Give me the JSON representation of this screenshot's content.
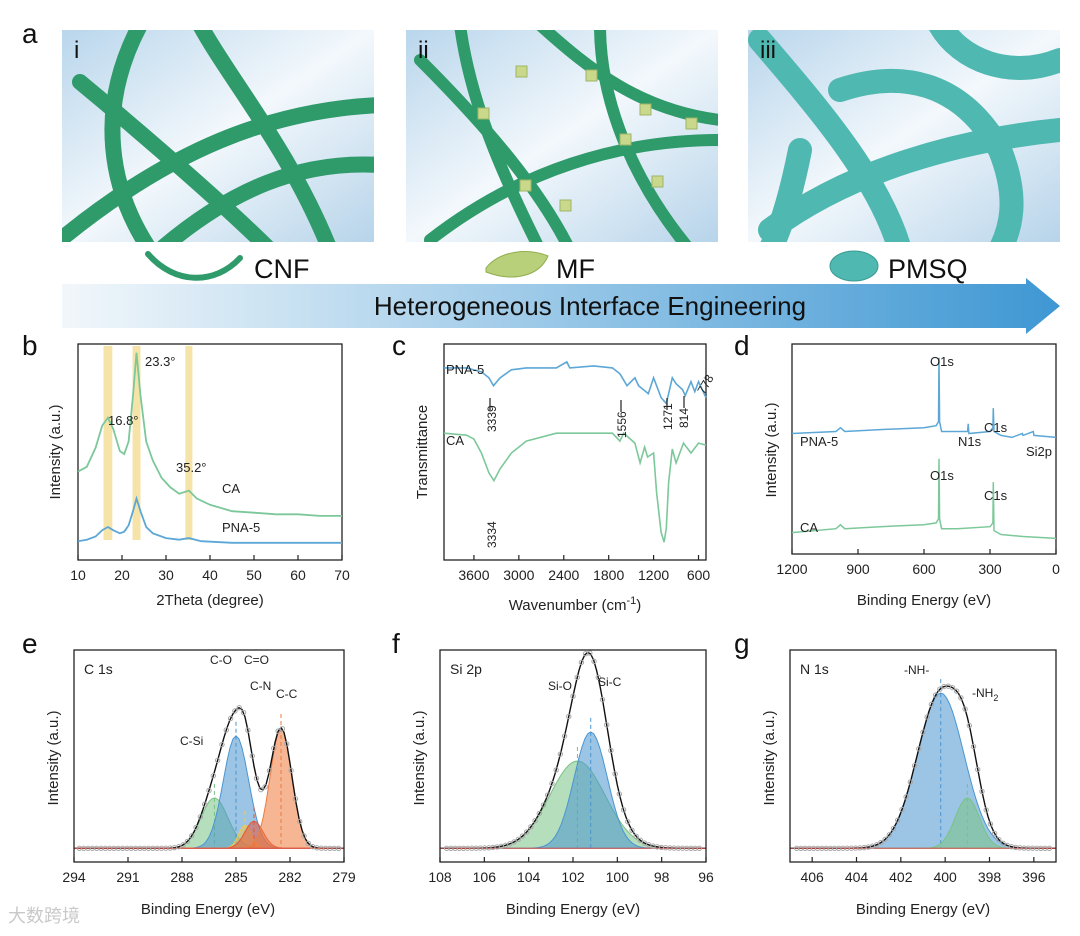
{
  "panels": {
    "a": {
      "letter": "a",
      "subpanels": [
        {
          "roman": "i",
          "material": "CNF"
        },
        {
          "roman": "ii",
          "material": "MF"
        },
        {
          "roman": "iii",
          "material": "PMSQ"
        }
      ],
      "arrow_label": "Heterogeneous Interface Engineering"
    },
    "b": {
      "letter": "b"
    },
    "c": {
      "letter": "c"
    },
    "d": {
      "letter": "d"
    },
    "e": {
      "letter": "e"
    },
    "f": {
      "letter": "f"
    },
    "g": {
      "letter": "g"
    }
  },
  "colors": {
    "green_curve": "#7cc89a",
    "blue_curve": "#5ca7d6",
    "highlight": "#f2d98a",
    "fiber": "#2f9a6a",
    "sky": "#cfe4f3",
    "arrow": "#4a9fd6",
    "cs_red": "#e5533a",
    "cs_blue": "#4a95d0",
    "cs_green": "#79c285",
    "cs_yellow": "#f2c94c",
    "cs_orange": "#ef7a3c",
    "data_gray": "#a8a8a8"
  },
  "watermark": "大数跨境",
  "chart_data": [
    {
      "id": "b",
      "type": "line",
      "xlabel": "2Theta (degree)",
      "ylabel": "Intensity (a.u.)",
      "xlim": [
        10,
        70
      ],
      "xticks": [
        10,
        20,
        30,
        40,
        50,
        60,
        70
      ],
      "highlight_bands": [
        [
          15.8,
          17.8
        ],
        [
          22.4,
          24.2
        ],
        [
          34.4,
          36.0
        ]
      ],
      "annotations": [
        "16.8°",
        "23.3°",
        "35.2°"
      ],
      "series": [
        {
          "name": "CA",
          "color": "#7cc89a",
          "points": [
            [
              10,
              0.47
            ],
            [
              12,
              0.5
            ],
            [
              14,
              0.62
            ],
            [
              15.5,
              0.76
            ],
            [
              16.8,
              0.81
            ],
            [
              18,
              0.74
            ],
            [
              19.5,
              0.6
            ],
            [
              20.5,
              0.58
            ],
            [
              21.5,
              0.66
            ],
            [
              22.5,
              0.95
            ],
            [
              23.3,
              1.22
            ],
            [
              24.2,
              0.95
            ],
            [
              25.5,
              0.66
            ],
            [
              27,
              0.54
            ],
            [
              29,
              0.43
            ],
            [
              31,
              0.37
            ],
            [
              33,
              0.33
            ],
            [
              35.2,
              0.35
            ],
            [
              37,
              0.3
            ],
            [
              40,
              0.26
            ],
            [
              45,
              0.22
            ],
            [
              50,
              0.21
            ],
            [
              55,
              0.2
            ],
            [
              60,
              0.2
            ],
            [
              65,
              0.19
            ],
            [
              70,
              0.19
            ]
          ]
        },
        {
          "name": "PNA-5",
          "color": "#5ca7d6",
          "points": [
            [
              10,
              0.03
            ],
            [
              12,
              0.04
            ],
            [
              14,
              0.06
            ],
            [
              15.5,
              0.1
            ],
            [
              16.8,
              0.12
            ],
            [
              18,
              0.1
            ],
            [
              19.5,
              0.08
            ],
            [
              20.5,
              0.09
            ],
            [
              21.5,
              0.13
            ],
            [
              22.5,
              0.22
            ],
            [
              23.3,
              0.3
            ],
            [
              24.2,
              0.22
            ],
            [
              25.5,
              0.12
            ],
            [
              27,
              0.08
            ],
            [
              30,
              0.05
            ],
            [
              33,
              0.04
            ],
            [
              35.2,
              0.05
            ],
            [
              38,
              0.03
            ],
            [
              45,
              0.02
            ],
            [
              55,
              0.02
            ],
            [
              70,
              0.02
            ]
          ]
        }
      ]
    },
    {
      "id": "c",
      "type": "line",
      "xlabel": "Wavenumber (cm",
      "xlabel_sup": "-1",
      "xlabel_tail": ")",
      "ylabel": "Transmittance",
      "xlim": [
        4000,
        500
      ],
      "xticks": [
        3600,
        3000,
        2400,
        1800,
        1200,
        600
      ],
      "annotations": [
        "3339",
        "1556",
        "1271",
        "814",
        "778",
        "3334"
      ],
      "series": [
        {
          "name": "PNA-5",
          "color": "#5ca7d6",
          "points": [
            [
              4000,
              0.93
            ],
            [
              3700,
              0.93
            ],
            [
              3500,
              0.91
            ],
            [
              3400,
              0.88
            ],
            [
              3339,
              0.84
            ],
            [
              3250,
              0.88
            ],
            [
              3100,
              0.92
            ],
            [
              2900,
              0.93
            ],
            [
              2500,
              0.93
            ],
            [
              2360,
              0.96
            ],
            [
              2320,
              0.93
            ],
            [
              2000,
              0.94
            ],
            [
              1750,
              0.93
            ],
            [
              1650,
              0.9
            ],
            [
              1556,
              0.84
            ],
            [
              1450,
              0.88
            ],
            [
              1400,
              0.84
            ],
            [
              1271,
              0.8
            ],
            [
              1200,
              0.88
            ],
            [
              1100,
              0.78
            ],
            [
              1030,
              0.75
            ],
            [
              950,
              0.88
            ],
            [
              900,
              0.85
            ],
            [
              814,
              0.82
            ],
            [
              778,
              0.79
            ],
            [
              700,
              0.86
            ],
            [
              650,
              0.81
            ],
            [
              600,
              0.86
            ],
            [
              500,
              0.78
            ]
          ]
        },
        {
          "name": "CA",
          "color": "#7cc89a",
          "points": [
            [
              4000,
              0.6
            ],
            [
              3700,
              0.59
            ],
            [
              3600,
              0.57
            ],
            [
              3500,
              0.5
            ],
            [
              3400,
              0.4
            ],
            [
              3334,
              0.36
            ],
            [
              3250,
              0.42
            ],
            [
              3100,
              0.5
            ],
            [
              2900,
              0.56
            ],
            [
              2500,
              0.6
            ],
            [
              2000,
              0.6
            ],
            [
              1750,
              0.6
            ],
            [
              1650,
              0.56
            ],
            [
              1600,
              0.6
            ],
            [
              1450,
              0.55
            ],
            [
              1380,
              0.45
            ],
            [
              1320,
              0.53
            ],
            [
              1280,
              0.48
            ],
            [
              1200,
              0.5
            ],
            [
              1160,
              0.3
            ],
            [
              1100,
              0.1
            ],
            [
              1060,
              0.05
            ],
            [
              1030,
              0.12
            ],
            [
              1000,
              0.35
            ],
            [
              950,
              0.52
            ],
            [
              900,
              0.45
            ],
            [
              800,
              0.55
            ],
            [
              700,
              0.5
            ],
            [
              600,
              0.55
            ],
            [
              500,
              0.54
            ]
          ]
        }
      ]
    },
    {
      "id": "d",
      "type": "line",
      "xlabel": "Binding Energy (eV)",
      "ylabel": "Intensity (a.u.)",
      "xlim": [
        1200,
        0
      ],
      "xticks": [
        1200,
        900,
        600,
        300,
        0
      ],
      "annotations": [
        "O1s",
        "N1s",
        "C1s",
        "Si2p",
        "O1s",
        "C1s"
      ],
      "series": [
        {
          "name": "PNA-5",
          "color": "#5ca7d6",
          "points": [
            [
              1200,
              0.61
            ],
            [
              1000,
              0.62
            ],
            [
              980,
              0.64
            ],
            [
              960,
              0.62
            ],
            [
              800,
              0.63
            ],
            [
              600,
              0.64
            ],
            [
              545,
              0.65
            ],
            [
              534,
              0.67
            ],
            [
              532,
              1.0
            ],
            [
              529,
              0.67
            ],
            [
              520,
              0.62
            ],
            [
              450,
              0.62
            ],
            [
              402,
              0.62
            ],
            [
              399,
              0.66
            ],
            [
              396,
              0.61
            ],
            [
              300,
              0.62
            ],
            [
              287,
              0.64
            ],
            [
              285,
              0.74
            ],
            [
              282,
              0.62
            ],
            [
              250,
              0.6
            ],
            [
              200,
              0.59
            ],
            [
              153,
              0.61
            ],
            [
              150,
              0.6
            ],
            [
              103,
              0.62
            ],
            [
              100,
              0.6
            ],
            [
              0,
              0.59
            ]
          ]
        },
        {
          "name": "CA",
          "color": "#7cc89a",
          "points": [
            [
              1200,
              0.1
            ],
            [
              1000,
              0.12
            ],
            [
              980,
              0.14
            ],
            [
              960,
              0.12
            ],
            [
              800,
              0.13
            ],
            [
              600,
              0.14
            ],
            [
              545,
              0.15
            ],
            [
              534,
              0.17
            ],
            [
              532,
              0.48
            ],
            [
              529,
              0.17
            ],
            [
              520,
              0.12
            ],
            [
              450,
              0.12
            ],
            [
              300,
              0.13
            ],
            [
              287,
              0.15
            ],
            [
              285,
              0.36
            ],
            [
              282,
              0.11
            ],
            [
              250,
              0.09
            ],
            [
              150,
              0.08
            ],
            [
              0,
              0.07
            ]
          ]
        }
      ]
    },
    {
      "id": "e",
      "type": "area",
      "title": "C 1s",
      "xlabel": "Binding Energy (eV)",
      "ylabel": "Intensity (a.u.)",
      "xlim": [
        294,
        279
      ],
      "xticks": [
        294,
        291,
        288,
        285,
        282,
        279
      ],
      "peaks": [
        {
          "name": "C-Si",
          "center": 286.2,
          "height": 0.26,
          "width": 0.75,
          "color": "#79c285"
        },
        {
          "name": "C-O",
          "center": 285.0,
          "height": 0.58,
          "width": 0.7,
          "color": "#4a95d0"
        },
        {
          "name": "C=O",
          "center": 284.5,
          "height": 0.12,
          "width": 0.35,
          "color": "#f2c94c"
        },
        {
          "name": "C-N",
          "center": 284.0,
          "height": 0.14,
          "width": 0.5,
          "color": "#e5533a"
        },
        {
          "name": "C-C",
          "center": 282.5,
          "height": 0.62,
          "width": 0.6,
          "color": "#ef7a3c"
        }
      ],
      "baseline": 0.05,
      "sample_range": [
        293.7,
        279.3
      ]
    },
    {
      "id": "f",
      "type": "area",
      "title": "Si 2p",
      "xlabel": "Binding Energy (eV)",
      "ylabel": "Intensity (a.u.)",
      "xlim": [
        108,
        96
      ],
      "xticks": [
        108,
        106,
        104,
        102,
        100,
        98,
        96
      ],
      "peaks": [
        {
          "name": "Si-O",
          "center": 101.8,
          "height": 0.45,
          "width": 1.25,
          "color": "#79c285"
        },
        {
          "name": "Si-C",
          "center": 101.2,
          "height": 0.6,
          "width": 0.75,
          "color": "#4a95d0"
        }
      ],
      "baseline": 0.05,
      "sample_range": [
        107.7,
        96.3
      ]
    },
    {
      "id": "g",
      "type": "area",
      "title": "N 1s",
      "xlabel": "Binding Energy (eV)",
      "ylabel": "Intensity (a.u.)",
      "xlim": [
        407,
        395
      ],
      "xticks": [
        406,
        404,
        402,
        400,
        398,
        396
      ],
      "peaks": [
        {
          "name": "-NH-",
          "center": 400.2,
          "height": 0.8,
          "width": 1.05,
          "color": "#4a95d0"
        },
        {
          "name": "-NH",
          "name_sub": "2",
          "center": 399.0,
          "height": 0.26,
          "width": 0.55,
          "color": "#79c285"
        }
      ],
      "baseline": 0.05,
      "sample_range": [
        406.7,
        395.3
      ]
    }
  ]
}
